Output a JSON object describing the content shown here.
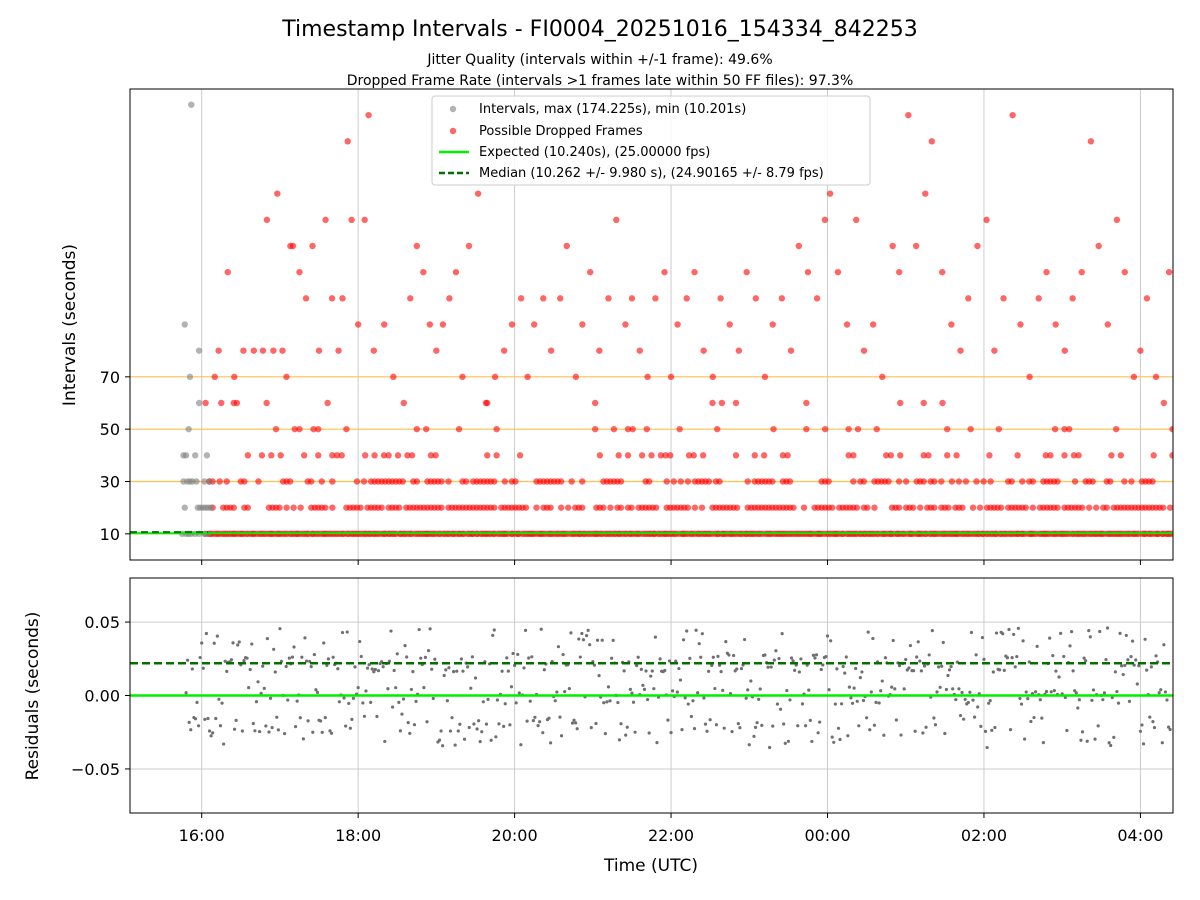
{
  "title": "Timestamp Intervals - FI0004_20251016_154334_842253",
  "subtitle_lines": [
    "Jitter Quality (intervals within +/-1 frame): 49.6%",
    "Dropped Frame Rate (intervals >1 frames late within 50 FF files): 97.3%"
  ],
  "colors": {
    "intervals": "#808080",
    "dropped": "#ff0000",
    "expected": "#00ee00",
    "median": "#007000",
    "reference_lines": "#ffc04d",
    "grid": "#cccccc"
  },
  "chart_data": [
    {
      "type": "scatter",
      "ylabel": "Intervals (seconds)",
      "xlim": [
        "15:05",
        "04:25"
      ],
      "x_ticks": [
        "16:00",
        "18:00",
        "20:00",
        "22:00",
        "00:00",
        "02:00",
        "04:00"
      ],
      "ylim": [
        0,
        180
      ],
      "y_ticks": [
        10,
        30,
        50,
        70
      ],
      "reference_lines": [
        10,
        30,
        50,
        70
      ],
      "grid": "vertical",
      "legend_position": "top-center",
      "legend": [
        {
          "marker": "dot-gray",
          "label": "Intervals, max (174.225s), min (10.201s)"
        },
        {
          "marker": "dot-red",
          "label": "Possible Dropped Frames"
        },
        {
          "marker": "line-green",
          "label": "Expected (10.240s), (25.00000 fps)"
        },
        {
          "marker": "dash-darkgreen",
          "label": "Median (10.262 +/- 9.980 s), (24.90165 +/- 8.79 fps)"
        }
      ],
      "series": [
        {
          "name": "Intervals, max (174.225s), min (10.201s)",
          "points": [
            [
              "15:45",
              10
            ],
            [
              "15:48",
              10
            ],
            [
              "15:50",
              10
            ],
            [
              "15:52",
              10
            ],
            [
              "15:55",
              10
            ],
            [
              "15:58",
              10
            ],
            [
              "16:02",
              10
            ],
            [
              "16:05",
              10
            ],
            [
              "15:47",
              20
            ],
            [
              "15:57",
              20
            ],
            [
              "15:59",
              20
            ],
            [
              "16:01",
              20
            ],
            [
              "16:03",
              20
            ],
            [
              "16:05",
              20
            ],
            [
              "16:07",
              20
            ],
            [
              "15:46",
              30
            ],
            [
              "15:49",
              30
            ],
            [
              "15:51",
              30
            ],
            [
              "15:53",
              30
            ],
            [
              "15:56",
              30
            ],
            [
              "16:02",
              30
            ],
            [
              "16:06",
              30
            ],
            [
              "15:46",
              40
            ],
            [
              "15:48",
              40
            ],
            [
              "15:55",
              40
            ],
            [
              "16:04",
              40
            ],
            [
              "15:50",
              50
            ],
            [
              "15:58",
              60
            ],
            [
              "15:51",
              70
            ],
            [
              "15:58",
              80
            ],
            [
              "15:47",
              90
            ],
            [
              "15:52",
              174
            ]
          ]
        },
        {
          "name": "Possible Dropped Frames",
          "baseline": 10,
          "levels_dense": [
            20,
            30
          ],
          "levels_sparse": [
            40,
            50,
            60
          ],
          "start": "16:03",
          "end": "04:25",
          "outliers": [
            [
              "16:10",
              70
            ],
            [
              "16:13",
              80
            ],
            [
              "16:15",
              60
            ],
            [
              "16:20",
              110
            ],
            [
              "16:25",
              70
            ],
            [
              "16:27",
              60
            ],
            [
              "16:32",
              80
            ],
            [
              "16:40",
              80
            ],
            [
              "16:47",
              80
            ],
            [
              "16:50",
              130
            ],
            [
              "16:55",
              80
            ],
            [
              "16:58",
              140
            ],
            [
              "17:02",
              80
            ],
            [
              "17:05",
              70
            ],
            [
              "17:08",
              120
            ],
            [
              "17:10",
              120
            ],
            [
              "17:15",
              110
            ],
            [
              "17:20",
              100
            ],
            [
              "17:25",
              120
            ],
            [
              "17:30",
              80
            ],
            [
              "17:35",
              130
            ],
            [
              "17:40",
              100
            ],
            [
              "17:45",
              80
            ],
            [
              "17:48",
              100
            ],
            [
              "17:52",
              160
            ],
            [
              "17:55",
              130
            ],
            [
              "18:00",
              90
            ],
            [
              "18:05",
              130
            ],
            [
              "18:08",
              170
            ],
            [
              "18:12",
              80
            ],
            [
              "18:20",
              90
            ],
            [
              "18:27",
              70
            ],
            [
              "18:35",
              60
            ],
            [
              "18:40",
              100
            ],
            [
              "18:45",
              120
            ],
            [
              "18:50",
              110
            ],
            [
              "18:55",
              90
            ],
            [
              "19:00",
              80
            ],
            [
              "19:05",
              90
            ],
            [
              "19:10",
              100
            ],
            [
              "19:15",
              110
            ],
            [
              "19:20",
              70
            ],
            [
              "19:25",
              120
            ],
            [
              "19:32",
              140
            ],
            [
              "19:38",
              60
            ],
            [
              "19:45",
              70
            ],
            [
              "19:52",
              80
            ],
            [
              "19:58",
              90
            ],
            [
              "20:05",
              100
            ],
            [
              "20:10",
              70
            ],
            [
              "20:15",
              90
            ],
            [
              "20:22",
              100
            ],
            [
              "20:28",
              80
            ],
            [
              "20:35",
              100
            ],
            [
              "20:40",
              120
            ],
            [
              "20:47",
              70
            ],
            [
              "20:52",
              90
            ],
            [
              "20:58",
              110
            ],
            [
              "21:05",
              80
            ],
            [
              "21:12",
              100
            ],
            [
              "21:18",
              130
            ],
            [
              "21:25",
              90
            ],
            [
              "21:30",
              100
            ],
            [
              "21:36",
              80
            ],
            [
              "21:42",
              70
            ],
            [
              "21:48",
              100
            ],
            [
              "21:55",
              110
            ],
            [
              "22:00",
              70
            ],
            [
              "22:05",
              90
            ],
            [
              "22:12",
              100
            ],
            [
              "22:18",
              110
            ],
            [
              "22:25",
              80
            ],
            [
              "22:32",
              70
            ],
            [
              "22:38",
              100
            ],
            [
              "22:45",
              90
            ],
            [
              "22:52",
              80
            ],
            [
              "22:58",
              110
            ],
            [
              "23:05",
              100
            ],
            [
              "23:12",
              70
            ],
            [
              "23:18",
              90
            ],
            [
              "23:25",
              100
            ],
            [
              "23:32",
              80
            ],
            [
              "23:38",
              120
            ],
            [
              "23:45",
              110
            ],
            [
              "23:52",
              100
            ],
            [
              "23:58",
              130
            ],
            [
              "00:02",
              140
            ],
            [
              "00:08",
              110
            ],
            [
              "00:15",
              90
            ],
            [
              "00:22",
              130
            ],
            [
              "00:28",
              80
            ],
            [
              "00:35",
              90
            ],
            [
              "00:42",
              70
            ],
            [
              "00:50",
              120
            ],
            [
              "00:55",
              110
            ],
            [
              "01:02",
              170
            ],
            [
              "01:08",
              120
            ],
            [
              "01:15",
              140
            ],
            [
              "01:20",
              160
            ],
            [
              "01:28",
              110
            ],
            [
              "01:35",
              90
            ],
            [
              "01:42",
              80
            ],
            [
              "01:48",
              100
            ],
            [
              "01:55",
              120
            ],
            [
              "02:02",
              130
            ],
            [
              "02:08",
              80
            ],
            [
              "02:15",
              100
            ],
            [
              "02:22",
              170
            ],
            [
              "02:28",
              90
            ],
            [
              "02:35",
              70
            ],
            [
              "02:42",
              100
            ],
            [
              "02:48",
              110
            ],
            [
              "02:55",
              90
            ],
            [
              "03:02",
              80
            ],
            [
              "03:08",
              100
            ],
            [
              "03:15",
              110
            ],
            [
              "03:22",
              160
            ],
            [
              "03:28",
              120
            ],
            [
              "03:35",
              90
            ],
            [
              "03:42",
              130
            ],
            [
              "03:48",
              110
            ],
            [
              "03:55",
              70
            ],
            [
              "04:00",
              80
            ],
            [
              "04:05",
              100
            ],
            [
              "04:12",
              70
            ],
            [
              "04:18",
              60
            ],
            [
              "04:22",
              110
            ]
          ]
        },
        {
          "name": "Expected (10.240s), (25.00000 fps)",
          "line_y": 10.24,
          "x_range": [
            "15:05",
            "04:25"
          ]
        },
        {
          "name": "Median (10.262 +/- 9.980 s), (24.90165 +/- 8.79 fps)",
          "line_y": 10.262,
          "x_range": [
            "15:05",
            "16:05"
          ]
        }
      ]
    },
    {
      "type": "scatter",
      "xlabel": "Time (UTC)",
      "ylabel": "Residuals (seconds)",
      "xlim": [
        "15:05",
        "04:25"
      ],
      "x_ticks": [
        "16:00",
        "18:00",
        "20:00",
        "22:00",
        "00:00",
        "02:00",
        "04:00"
      ],
      "ylim": [
        -0.08,
        0.08
      ],
      "y_ticks": [
        0.05,
        0.0,
        -0.05
      ],
      "y_tick_labels": [
        "0.05",
        "0.00",
        "−0.05"
      ],
      "grid": "both",
      "series": [
        {
          "name": "Residuals",
          "distribution": {
            "clusters": [
              0.022,
              0.0,
              -0.02,
              0.04,
              -0.03
            ],
            "range": [
              -0.04,
              0.048
            ]
          }
        },
        {
          "name": "Expected",
          "line_y": 0.0
        },
        {
          "name": "Median",
          "line_y": 0.022
        }
      ]
    }
  ]
}
